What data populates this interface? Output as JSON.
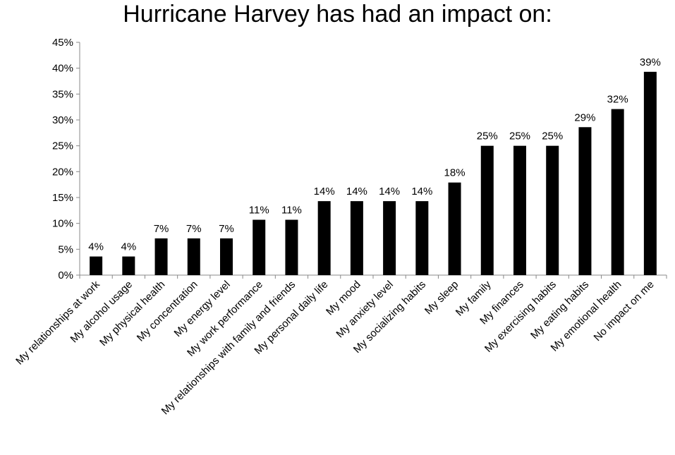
{
  "chart_data": {
    "type": "bar",
    "title": "Hurricane Harvey has had an impact on:",
    "xlabel": "",
    "ylabel": "",
    "ylim": [
      0,
      45
    ],
    "yticks": [
      "0%",
      "5%",
      "10%",
      "15%",
      "20%",
      "25%",
      "30%",
      "35%",
      "40%",
      "45%"
    ],
    "grid": false,
    "legend": "none",
    "bar_color": "#000000",
    "categories": [
      "My relationships at work",
      "My alcohol usage",
      "My physical health",
      "My concentration",
      "My energy level",
      "My work performance",
      "My relationships with family and friends",
      "My personal daily life",
      "My mood",
      "My anxiety level",
      "My socializing habits",
      "My sleep",
      "My family",
      "My finances",
      "My exercising habits",
      "My eating habits",
      "My emotional health",
      "No impact on me"
    ],
    "values": [
      3.6,
      3.6,
      7.1,
      7.1,
      7.1,
      10.7,
      10.7,
      14.3,
      14.3,
      14.3,
      14.3,
      17.9,
      25.0,
      25.0,
      25.0,
      28.6,
      32.1,
      39.3
    ],
    "data_labels": [
      "4%",
      "4%",
      "7%",
      "7%",
      "7%",
      "11%",
      "11%",
      "14%",
      "14%",
      "14%",
      "14%",
      "18%",
      "25%",
      "25%",
      "25%",
      "29%",
      "32%",
      "39%"
    ]
  }
}
